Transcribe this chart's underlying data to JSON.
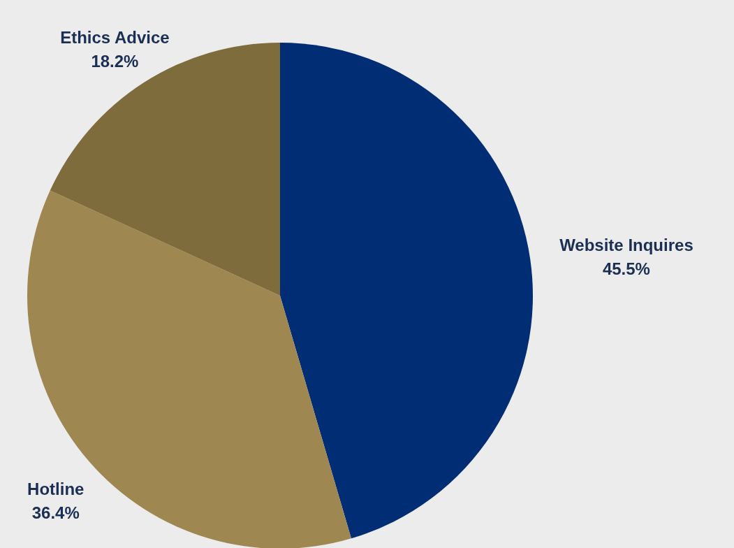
{
  "chart_data": {
    "type": "pie",
    "categories": [
      "Website Inquires",
      "Hotline",
      "Ethics Advice"
    ],
    "values": [
      45.5,
      36.4,
      18.2
    ],
    "colors": [
      "#002d74",
      "#9e8751",
      "#7f6c3c"
    ],
    "value_labels": [
      "45.5%",
      "36.4%",
      "18.2%"
    ]
  }
}
